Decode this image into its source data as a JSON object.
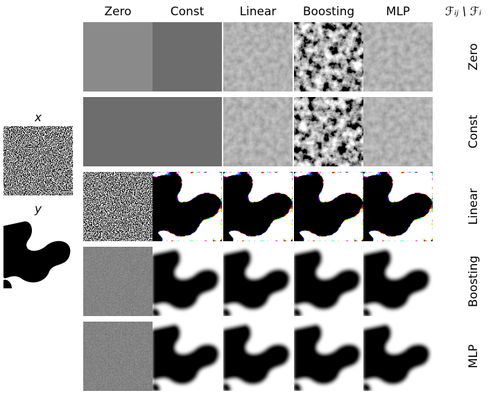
{
  "columns": [
    "Zero",
    "Const",
    "Linear",
    "Boosting",
    "MLP"
  ],
  "rows": [
    "Zero",
    "Const",
    "Linear",
    "Boosting",
    "MLP"
  ],
  "corner_label": "ℱᵢⱼ \\ ℱᵢ",
  "inputs": {
    "x": "x",
    "y": "y"
  }
}
